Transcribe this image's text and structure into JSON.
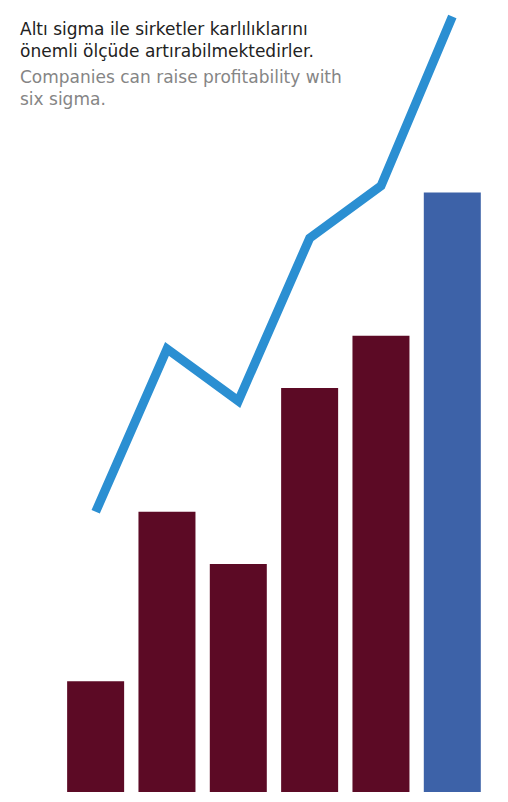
{
  "chart_data": {
    "type": "bar",
    "title": "Altı sigma ile sirketler karlılıklarını önemli ölçüde artırabilmektedirler.",
    "subtitle": "Companies can raise profitability with six sigma.",
    "categories": [
      null,
      null,
      null,
      null,
      null,
      null
    ],
    "ylim": [
      0,
      120
    ],
    "tick_labels": false,
    "grid": false,
    "series": [
      {
        "type": "bar",
        "colors": [
          "#5c0a25",
          "#5c0a25",
          "#5c0a25",
          "#5c0a25",
          "#5c0a25",
          "#3d62a8"
        ],
        "values": [
          17,
          43,
          35,
          62,
          70,
          92
        ]
      },
      {
        "type": "line",
        "color": "#2b8fd2",
        "marker": "none",
        "line_style": "solid",
        "values": [
          43,
          68,
          60,
          85,
          93,
          119
        ]
      }
    ]
  }
}
